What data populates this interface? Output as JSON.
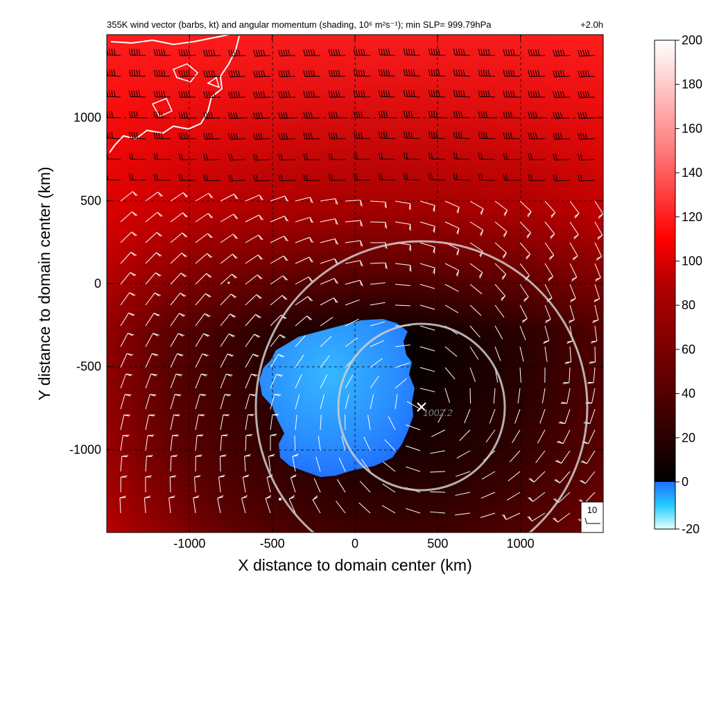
{
  "figure": {
    "title": "355K wind vector (barbs, kt) and angular momentum (shading, 10⁶ m²s⁻¹); min SLP= 999.79hPa",
    "lead_time": "+2.0h",
    "xlabel": "X distance to domain center (km)",
    "ylabel": "Y distance to domain center (km)",
    "center_label": "1002.2",
    "reference_barb_label": "10"
  },
  "chart_data": {
    "type": "heatmap",
    "variable": "angular momentum",
    "overlay": "wind barbs (kt)",
    "xlim": [
      -1500,
      1500
    ],
    "ylim": [
      -1500,
      1500
    ],
    "x_ticks": [
      -1000,
      -500,
      0,
      500,
      1000
    ],
    "x_tick_labels": [
      "-1000",
      "-500",
      "0",
      "500",
      "1000"
    ],
    "y_ticks": [
      1000,
      500,
      0,
      -500,
      -1000
    ],
    "y_tick_labels": [
      "1000",
      "500",
      "0",
      "-500",
      "-1000"
    ],
    "grid": true,
    "colorbar": {
      "range": [
        -20,
        200
      ],
      "ticks": [
        200,
        180,
        160,
        140,
        120,
        100,
        80,
        60,
        40,
        20,
        0,
        -20
      ],
      "tick_labels": [
        "200",
        "180",
        "160",
        "140",
        "120",
        "100",
        "80",
        "60",
        "40",
        "20",
        "0",
        "-20"
      ],
      "colors": {
        "negative_low": "#e6ffff",
        "negative_mid": "#22ccff",
        "negative_high": "#1f6fff",
        "zero": "#000000",
        "low": "#3a0000",
        "mid": "#aa0000",
        "high": "#ff0000",
        "top": "#ffffff"
      }
    },
    "storm_center": {
      "x": 400,
      "y": -730,
      "slp": 1002.2
    },
    "range_rings_km": [
      500,
      1000
    ],
    "negative_region_center": {
      "x": -110,
      "y": -680
    }
  }
}
